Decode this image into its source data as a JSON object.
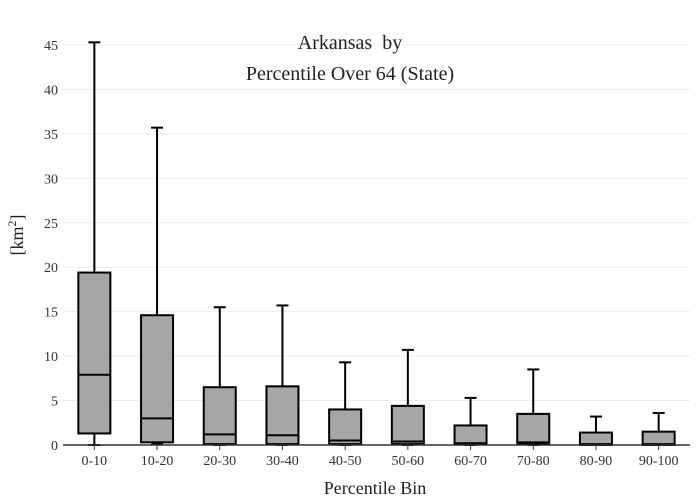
{
  "chart_data": {
    "type": "box",
    "title_line1": "Arkansas  by",
    "title_line2": "Percentile Over 64 (State)",
    "xlabel": "Percentile Bin",
    "ylabel_base": "[km",
    "ylabel_sup": "2",
    "ylabel_close": "]",
    "ylim": [
      0,
      46
    ],
    "yticks": [
      0,
      5,
      10,
      15,
      20,
      25,
      30,
      35,
      40,
      45
    ],
    "grid": true,
    "box_color": "#a6a6a6",
    "line_color": "#000000",
    "categories": [
      "0-10",
      "10-20",
      "20-30",
      "30-40",
      "40-50",
      "50-60",
      "60-70",
      "70-80",
      "80-90",
      "90-100"
    ],
    "boxes": [
      {
        "category": "0-10",
        "min": 0,
        "q1": 1.3,
        "median": 7.9,
        "q3": 19.4,
        "max": 45.3
      },
      {
        "category": "10-20",
        "min": 0.1,
        "q1": 0.3,
        "median": 3.0,
        "q3": 14.6,
        "max": 35.7
      },
      {
        "category": "20-30",
        "min": 0,
        "q1": 0.1,
        "median": 1.2,
        "q3": 6.5,
        "max": 15.5
      },
      {
        "category": "30-40",
        "min": 0,
        "q1": 0.1,
        "median": 1.1,
        "q3": 6.6,
        "max": 15.7
      },
      {
        "category": "40-50",
        "min": 0,
        "q1": 0.1,
        "median": 0.5,
        "q3": 4.0,
        "max": 9.3
      },
      {
        "category": "50-60",
        "min": 0,
        "q1": 0.1,
        "median": 0.4,
        "q3": 4.4,
        "max": 10.7
      },
      {
        "category": "60-70",
        "min": 0,
        "q1": 0.1,
        "median": 0.2,
        "q3": 2.2,
        "max": 5.3
      },
      {
        "category": "70-80",
        "min": 0,
        "q1": 0.1,
        "median": 0.3,
        "q3": 3.5,
        "max": 8.5
      },
      {
        "category": "80-90",
        "min": 0,
        "q1": 0,
        "median": 0.1,
        "q3": 1.4,
        "max": 3.2
      },
      {
        "category": "90-100",
        "min": 0,
        "q1": 0,
        "median": 0.1,
        "q3": 1.5,
        "max": 3.6
      }
    ]
  }
}
